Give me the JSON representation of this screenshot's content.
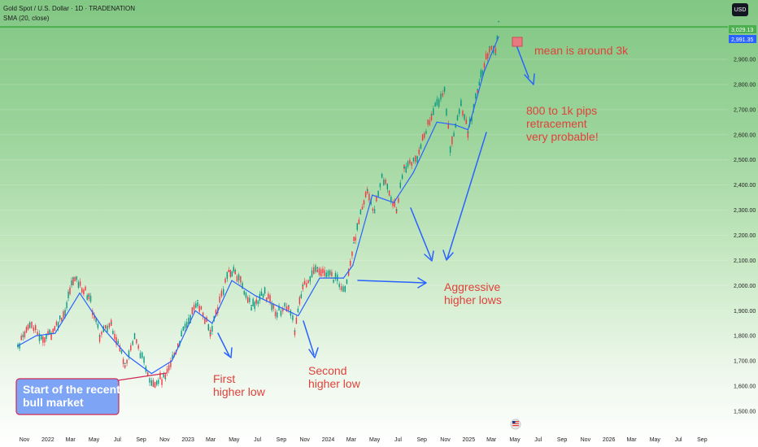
{
  "header": {
    "title": "Gold Spot / U.S. Dollar · 1D · TRADENATION",
    "indicator": "SMA (20, close)",
    "currency": "USD"
  },
  "price_tags": {
    "current": "3,029.13",
    "sma": "2,991.35"
  },
  "annotations": {
    "mean": "mean is around 3k",
    "retrace_1": "800 to 1k pips",
    "retrace_2": "retracement",
    "retrace_3": "very probable!",
    "aggressive_1": "Aggressive",
    "aggressive_2": "higher lows",
    "first_1": "First",
    "first_2": "higher low",
    "second_1": "Second",
    "second_2": "higher low",
    "start_1": "Start of the recent",
    "start_2": "bull market"
  },
  "colors": {
    "annotation": "#e0413b",
    "arrow": "#2962ff",
    "sma_line": "#2962ff",
    "up_candle": "#089981",
    "down_candle": "#f23645",
    "level_line": "#4caf50",
    "callout_bg": "#7ea4f5",
    "callout_border": "#d02a54"
  },
  "chart_data": {
    "type": "line",
    "title": "Gold Spot / U.S. Dollar · 1D · TRADENATION",
    "xlabel": "",
    "ylabel": "",
    "x_ticks": [
      "Nov",
      "2022",
      "Mar",
      "May",
      "Jul",
      "Sep",
      "Nov",
      "2023",
      "Mar",
      "May",
      "Jul",
      "Sep",
      "Nov",
      "2024",
      "Mar",
      "May",
      "Jul",
      "Sep",
      "Nov",
      "2025",
      "Mar",
      "May",
      "Jul",
      "Sep",
      "Nov",
      "2026",
      "Mar",
      "May",
      "Jul",
      "Sep"
    ],
    "y_ticks": [
      1500,
      1600,
      1700,
      1800,
      1900,
      2000,
      2100,
      2200,
      2300,
      2400,
      2500,
      2600,
      2700,
      2800,
      2900
    ],
    "ylim": [
      1470,
      3110
    ],
    "horizontal_level": 3029,
    "series": [
      {
        "name": "",
        "x": [
          "2021-10-15",
          "2021-11-15",
          "2021-12-15",
          "2022-01-10",
          "2022-02-15",
          "2022-03-08",
          "2022-04-18",
          "2022-05-16",
          "2022-06-15",
          "2022-07-21",
          "2022-08-15",
          "2022-09-28",
          "2022-11-03",
          "2022-12-15",
          "2023-01-26",
          "2023-02-28",
          "2023-04-13",
          "2023-05-04",
          "2023-06-15",
          "2023-07-20",
          "2023-08-21",
          "2023-09-20",
          "2023-10-06",
          "2023-10-27",
          "2023-12-04",
          "2024-01-15",
          "2024-02-14",
          "2024-03-08",
          "2024-04-12",
          "2024-05-01",
          "2024-05-20",
          "2024-06-27",
          "2024-07-17",
          "2024-08-20",
          "2024-09-26",
          "2024-10-30",
          "2024-11-14",
          "2024-12-12",
          "2024-12-30",
          "2025-01-24",
          "2025-02-24",
          "2025-03-12",
          "2025-03-20"
        ],
        "values": [
          1760,
          1850,
          1790,
          1810,
          1900,
          2030,
          1960,
          1800,
          1850,
          1690,
          1790,
          1620,
          1630,
          1800,
          1940,
          1810,
          2040,
          2060,
          1920,
          1970,
          1890,
          1920,
          1820,
          2000,
          2070,
          2030,
          1990,
          2170,
          2380,
          2290,
          2440,
          2300,
          2470,
          2510,
          2680,
          2780,
          2550,
          2720,
          2610,
          2780,
          2950,
          2920,
          3050
        ]
      },
      {
        "name": "",
        "x": [
          "2021-10-15",
          "2021-12-01",
          "2022-01-20",
          "2022-03-25",
          "2022-05-25",
          "2022-07-28",
          "2022-09-28",
          "2022-11-20",
          "2023-01-20",
          "2023-03-05",
          "2023-04-25",
          "2023-06-25",
          "2023-08-20",
          "2023-10-15",
          "2023-12-10",
          "2024-02-10",
          "2024-03-05",
          "2024-04-25",
          "2024-06-20",
          "2024-08-10",
          "2024-10-10",
          "2024-11-25",
          "2024-12-30",
          "2025-02-10",
          "2025-03-20"
        ],
        "values": [
          1760,
          1800,
          1810,
          1970,
          1830,
          1720,
          1650,
          1700,
          1900,
          1850,
          2020,
          1960,
          1920,
          1880,
          2030,
          2030,
          2080,
          2360,
          2330,
          2450,
          2650,
          2640,
          2620,
          2850,
          2990
        ]
      }
    ]
  }
}
